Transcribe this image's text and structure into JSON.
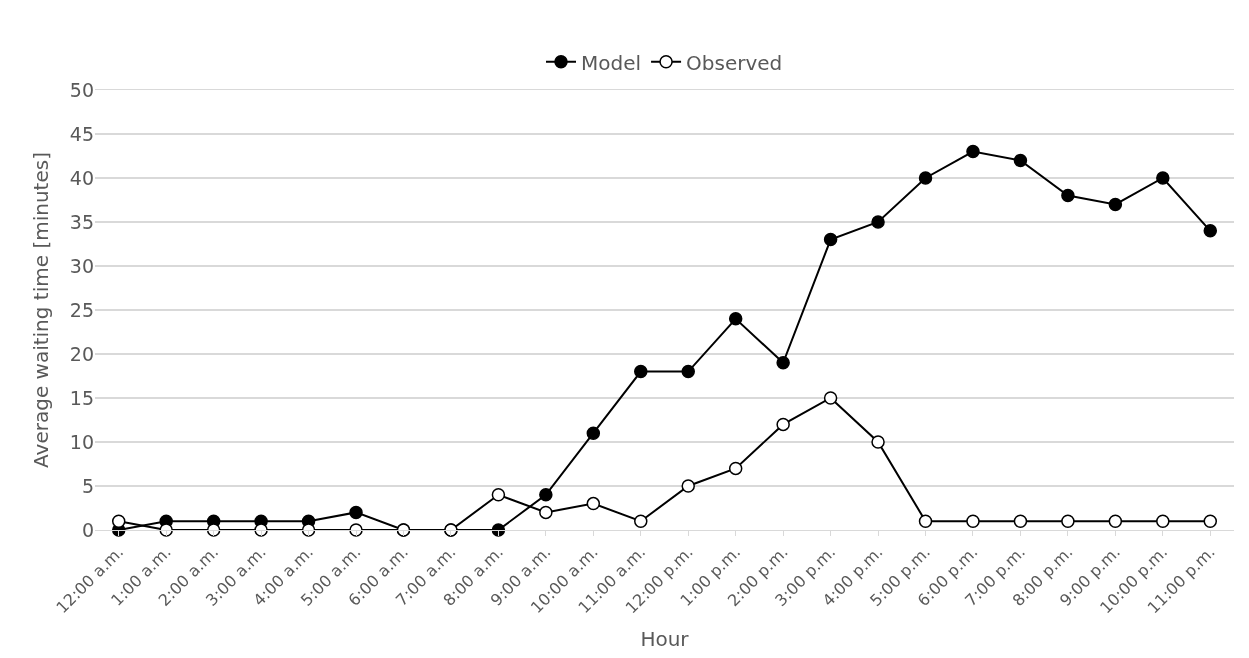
{
  "chart_data": {
    "type": "line",
    "xlabel": "Hour",
    "ylabel": "Average waiting time [minutes]",
    "categories": [
      "12:00 a.m.",
      "1:00 a.m.",
      "2:00 a.m.",
      "3:00 a.m.",
      "4:00 a.m.",
      "5:00 a.m.",
      "6:00 a.m.",
      "7:00 a.m.",
      "8:00 a.m.",
      "9:00 a.m.",
      "10:00 a.m.",
      "11:00 a.m.",
      "12:00 p.m.",
      "1:00 p.m.",
      "2:00 p.m.",
      "3:00 p.m.",
      "4:00 p.m.",
      "5:00 p.m.",
      "6:00 p.m.",
      "7:00 p.m.",
      "8:00 p.m.",
      "9:00 p.m.",
      "10:00 p.m.",
      "11:00 p.m."
    ],
    "series": [
      {
        "name": "Model",
        "color": "#000000",
        "values": [
          0,
          1,
          1,
          1,
          1,
          2,
          0,
          0,
          0,
          4,
          11,
          18,
          18,
          24,
          19,
          33,
          35,
          40,
          43,
          42,
          38,
          37,
          40,
          34
        ]
      },
      {
        "name": "Observed",
        "color": "#000000",
        "colors": [
          "#ffffff",
          "#ffffff",
          "#ffffff",
          "#ffffff",
          "#ffffff",
          "#ffffff",
          "#ffffff",
          "#ffffff",
          "#ffffff",
          "#ffffff",
          "#ffffff",
          "#ffffff",
          "#ffffff",
          "#ffffff",
          "#ffffff",
          "#ffffff",
          "#ffffff",
          "#ffffff",
          "#ffffff",
          "#ffffff",
          "#ffffff",
          "#ffffff",
          "#ffffff",
          "#ffffff"
        ],
        "values": [
          1,
          0,
          0,
          0,
          0,
          0,
          0,
          0,
          4,
          2,
          3,
          1,
          5,
          7,
          12,
          15,
          10,
          1,
          1,
          1,
          1,
          1,
          1,
          1
        ]
      }
    ],
    "ylim": [
      0,
      50
    ],
    "yticks": [
      0,
      5,
      10,
      15,
      20,
      25,
      30,
      35,
      40,
      45,
      50
    ],
    "grid": "y",
    "legend": "top",
    "marker": "circle",
    "line_style": "solid"
  }
}
